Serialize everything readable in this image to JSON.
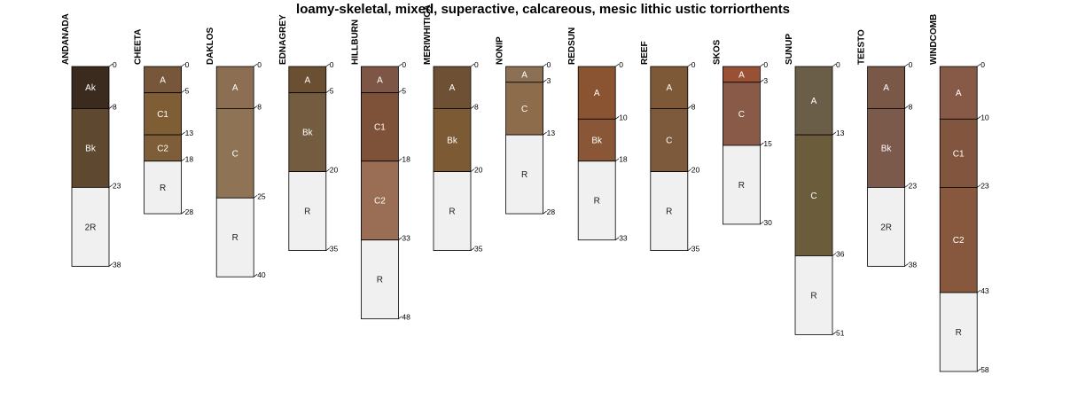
{
  "chart_data": {
    "type": "soil-profile-sketch",
    "title": "loamy-skeletal, mixed, superactive, calcareous, mesic lithic ustic torriorthents",
    "depth_unit": "",
    "profiles": [
      {
        "name": "ANDANADA",
        "horizons": [
          {
            "name": "Ak",
            "top": 0,
            "bottom": 8,
            "color": "#3B2A1E"
          },
          {
            "name": "Bk",
            "top": 8,
            "bottom": 23,
            "color": "#5E4830"
          },
          {
            "name": "2R",
            "top": 23,
            "bottom": 38,
            "color": "#F0F0F0"
          }
        ]
      },
      {
        "name": "CHEETA",
        "horizons": [
          {
            "name": "A",
            "top": 0,
            "bottom": 5,
            "color": "#77573A"
          },
          {
            "name": "C1",
            "top": 5,
            "bottom": 13,
            "color": "#805E35"
          },
          {
            "name": "C2",
            "top": 13,
            "bottom": 18,
            "color": "#7E5E38"
          },
          {
            "name": "R",
            "top": 18,
            "bottom": 28,
            "color": "#F0F0F0"
          }
        ]
      },
      {
        "name": "DAKLOS",
        "horizons": [
          {
            "name": "A",
            "top": 0,
            "bottom": 8,
            "color": "#8C6E52"
          },
          {
            "name": "C",
            "top": 8,
            "bottom": 25,
            "color": "#8F7355"
          },
          {
            "name": "R",
            "top": 25,
            "bottom": 40,
            "color": "#F0F0F0"
          }
        ]
      },
      {
        "name": "EDNAGREY",
        "horizons": [
          {
            "name": "A",
            "top": 0,
            "bottom": 5,
            "color": "#6B4F33"
          },
          {
            "name": "Bk",
            "top": 5,
            "bottom": 20,
            "color": "#735C40"
          },
          {
            "name": "R",
            "top": 20,
            "bottom": 35,
            "color": "#F0F0F0"
          }
        ]
      },
      {
        "name": "HILLBURN",
        "horizons": [
          {
            "name": "A",
            "top": 0,
            "bottom": 5,
            "color": "#7D5646"
          },
          {
            "name": "C1",
            "top": 5,
            "bottom": 18,
            "color": "#7E5238"
          },
          {
            "name": "C2",
            "top": 18,
            "bottom": 33,
            "color": "#9A6E55"
          },
          {
            "name": "R",
            "top": 33,
            "bottom": 48,
            "color": "#F0F0F0"
          }
        ]
      },
      {
        "name": "MERIWHITICA",
        "horizons": [
          {
            "name": "A",
            "top": 0,
            "bottom": 8,
            "color": "#6E5035"
          },
          {
            "name": "Bk",
            "top": 8,
            "bottom": 20,
            "color": "#7C5B34"
          },
          {
            "name": "R",
            "top": 20,
            "bottom": 35,
            "color": "#F0F0F0"
          }
        ]
      },
      {
        "name": "NONIP",
        "horizons": [
          {
            "name": "A",
            "top": 0,
            "bottom": 3,
            "color": "#8C7055"
          },
          {
            "name": "C",
            "top": 3,
            "bottom": 13,
            "color": "#8C6C4B"
          },
          {
            "name": "R",
            "top": 13,
            "bottom": 28,
            "color": "#F0F0F0"
          }
        ]
      },
      {
        "name": "REDSUN",
        "horizons": [
          {
            "name": "A",
            "top": 0,
            "bottom": 10,
            "color": "#8A5331"
          },
          {
            "name": "Bk",
            "top": 10,
            "bottom": 18,
            "color": "#8A5638"
          },
          {
            "name": "R",
            "top": 18,
            "bottom": 33,
            "color": "#F0F0F0"
          }
        ]
      },
      {
        "name": "REEF",
        "horizons": [
          {
            "name": "A",
            "top": 0,
            "bottom": 8,
            "color": "#7D5938"
          },
          {
            "name": "C",
            "top": 8,
            "bottom": 20,
            "color": "#7D5A3B"
          },
          {
            "name": "R",
            "top": 20,
            "bottom": 35,
            "color": "#F0F0F0"
          }
        ]
      },
      {
        "name": "SKOS",
        "horizons": [
          {
            "name": "A",
            "top": 0,
            "bottom": 3,
            "color": "#9A5035"
          },
          {
            "name": "C",
            "top": 3,
            "bottom": 15,
            "color": "#8A5A48"
          },
          {
            "name": "R",
            "top": 15,
            "bottom": 30,
            "color": "#F0F0F0"
          }
        ]
      },
      {
        "name": "SUNUP",
        "horizons": [
          {
            "name": "A",
            "top": 0,
            "bottom": 13,
            "color": "#6B5E48"
          },
          {
            "name": "C",
            "top": 13,
            "bottom": 36,
            "color": "#6B5D3B"
          },
          {
            "name": "R",
            "top": 36,
            "bottom": 51,
            "color": "#F0F0F0"
          }
        ]
      },
      {
        "name": "TEESTO",
        "horizons": [
          {
            "name": "A",
            "top": 0,
            "bottom": 8,
            "color": "#7A5848"
          },
          {
            "name": "Bk",
            "top": 8,
            "bottom": 23,
            "color": "#7C5A4B"
          },
          {
            "name": "2R",
            "top": 23,
            "bottom": 38,
            "color": "#F0F0F0"
          }
        ]
      },
      {
        "name": "WINDCOMB",
        "horizons": [
          {
            "name": "A",
            "top": 0,
            "bottom": 10,
            "color": "#875A48"
          },
          {
            "name": "C1",
            "top": 10,
            "bottom": 23,
            "color": "#82553E"
          },
          {
            "name": "C2",
            "top": 23,
            "bottom": 43,
            "color": "#87583D"
          },
          {
            "name": "R",
            "top": 43,
            "bottom": 58,
            "color": "#F0F0F0"
          }
        ]
      }
    ]
  }
}
